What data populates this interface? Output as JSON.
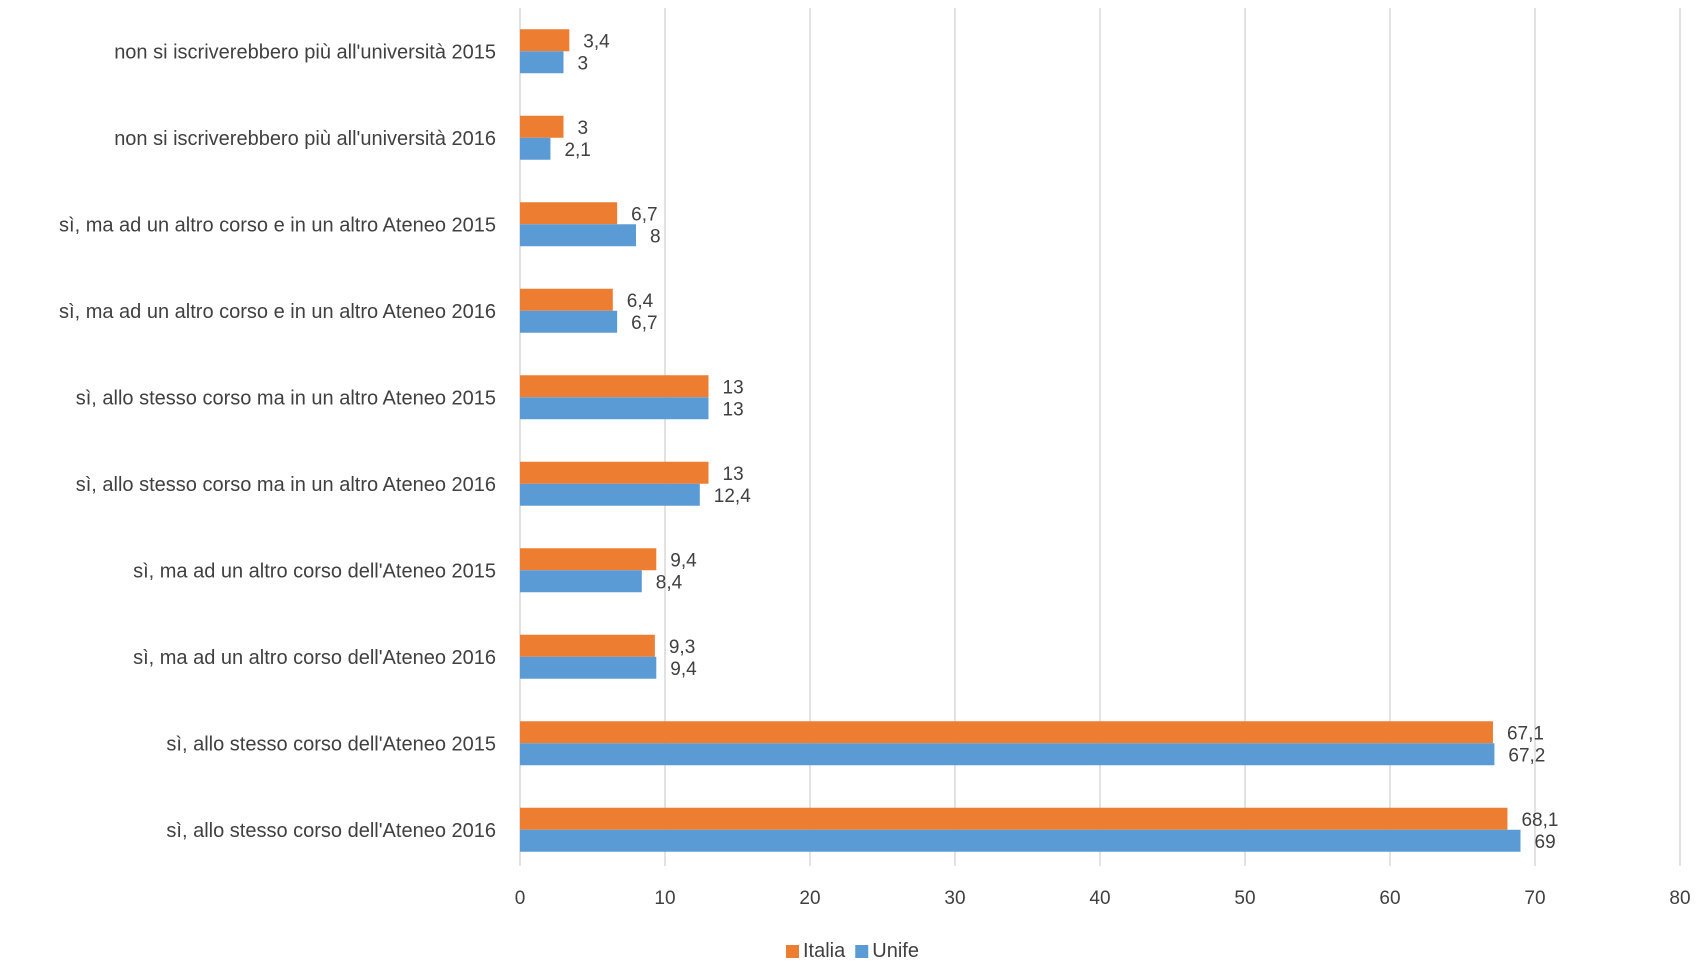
{
  "chart_data": {
    "type": "bar",
    "orientation": "horizontal",
    "categories": [
      "non si iscriverebbero più all'università 2015",
      "non si iscriverebbero più all'università 2016",
      "sì, ma ad un altro corso e in un altro Ateneo 2015",
      "sì, ma ad un altro corso e in un altro Ateneo 2016",
      "sì, allo stesso corso ma in un altro Ateneo 2015",
      "sì, allo stesso corso ma in un altro Ateneo 2016",
      "sì, ma ad un altro corso dell'Ateneo 2015",
      "sì, ma ad un altro corso dell'Ateneo 2016",
      "sì, allo stesso corso dell'Ateneo 2015",
      "sì, allo stesso corso dell'Ateneo 2016"
    ],
    "series": [
      {
        "name": "Italia",
        "color": "#ED7D31",
        "values": [
          3.4,
          3,
          6.7,
          6.4,
          13,
          13,
          9.4,
          9.3,
          67.1,
          68.1
        ],
        "labels": [
          "3,4",
          "3",
          "6,7",
          "6,4",
          "13",
          "13",
          "9,4",
          "9,3",
          "67,1",
          "68,1"
        ]
      },
      {
        "name": "Unife",
        "color": "#5B9BD5",
        "values": [
          3,
          2.1,
          8,
          6.7,
          13,
          12.4,
          8.4,
          9.4,
          67.2,
          69
        ],
        "labels": [
          "3",
          "2,1",
          "8",
          "6,7",
          "13",
          "12,4",
          "8,4",
          "9,4",
          "67,2",
          "69"
        ]
      }
    ],
    "xlim": [
      0,
      80
    ],
    "xticks": [
      0,
      10,
      20,
      30,
      40,
      50,
      60,
      70,
      80
    ],
    "grid": true,
    "legend_position": "bottom"
  }
}
